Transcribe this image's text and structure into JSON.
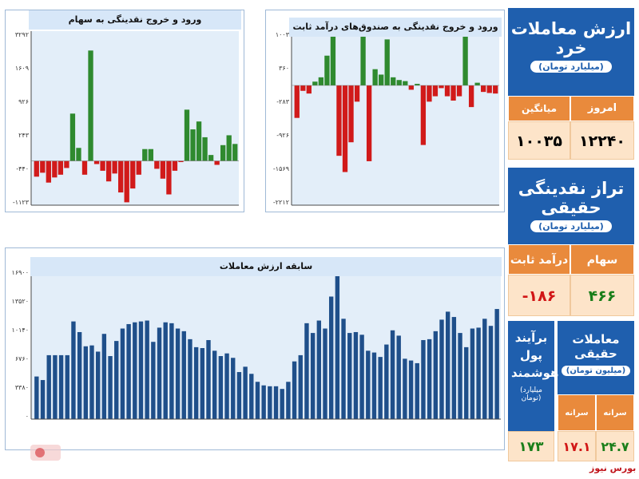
{
  "colors": {
    "positive": "#2f8a2f",
    "negative": "#d11a1a",
    "bars": "#1f4f8a",
    "header": "#d7e7f8",
    "blue_panel": "#1f5fae",
    "orange": "#e98a3c"
  },
  "retail_value": {
    "title": "ارزش معاملات خرد",
    "subtitle": "(میلیارد تومان)",
    "today_label": "امروز",
    "today_value": "۱۲۲۴۰",
    "weekly_avg_label": "میانگین هفتگی",
    "weekly_avg_value": "۱۰۰۳۵"
  },
  "real_liquidity": {
    "title": "تراز نقدینگی حقیقی",
    "subtitle": "(میلیارد تومان)",
    "stock_label": "سهام",
    "stock_value": "۴۶۶",
    "fixed_label": "درآمد ثابت",
    "fixed_value": "-۱۸۶"
  },
  "real_trades": {
    "title": "معاملات حقیقی",
    "subtitle": "(میلیون تومان)",
    "buy_per_capita_label": "سرانه خرید",
    "buy_per_capita_value": "۲۴.۷",
    "sell_per_capita_label": "سرانه فروش",
    "sell_per_capita_value": "۱۷.۱"
  },
  "smart_money": {
    "title": "برآیند پول هوشمند",
    "subtitle": "(میلیارد تومان)",
    "value": "۱۷۳"
  },
  "source_label": "بورس نیوز",
  "chart_data": [
    {
      "type": "bar",
      "title": "ورود و خروج نقدینگی به سهام",
      "ytick_labels": [
        "۳۲۹۲",
        "۱۶۰۹",
        "۹۲۶",
        "۲۴۳",
        "-۴۴۰",
        "-۱۱۲۳"
      ],
      "ylim": [
        -1123,
        3292
      ],
      "values": [
        -400,
        -300,
        -550,
        -420,
        -350,
        -180,
        1200,
        330,
        -350,
        2800,
        -80,
        -250,
        -520,
        -320,
        -800,
        -1050,
        -700,
        -350,
        300,
        300,
        -200,
        -450,
        -850,
        -250,
        -30,
        1300,
        800,
        1000,
        600,
        150,
        -100,
        400,
        650,
        430
      ],
      "grid": false
    },
    {
      "type": "bar",
      "title": "ورود و خروج نقدینگی به صندوق‌های درآمد ثابت",
      "ytick_labels": [
        "۱۰۰۳",
        "۳۶۰",
        "-۲۸۳",
        "-۹۲۶",
        "-۱۵۶۹",
        "-۲۲۱۲"
      ],
      "ylim": [
        -2212,
        1003
      ],
      "values": [
        -600,
        -100,
        -150,
        70,
        150,
        550,
        1000,
        -1300,
        -1600,
        -1050,
        -300,
        1000,
        -1400,
        300,
        200,
        850,
        150,
        100,
        80,
        -80,
        30,
        -1100,
        -300,
        -200,
        -50,
        -200,
        -280,
        -200,
        1000,
        -400,
        50,
        -120,
        -140,
        -150
      ],
      "grid": false
    },
    {
      "type": "bar",
      "title": "سابقه ارزش معاملات",
      "ytick_labels": [
        "۱۶۹۰۰",
        "۱۳۵۲۰",
        "۱۰۱۴۰",
        "۶۷۶۰",
        "۳۳۸۰",
        "۰"
      ],
      "ylim": [
        0,
        16900
      ],
      "values": [
        4800,
        4400,
        7200,
        7200,
        7200,
        7200,
        11000,
        9800,
        8200,
        8300,
        7600,
        9600,
        7100,
        8800,
        10200,
        10700,
        10900,
        11000,
        11100,
        8700,
        10300,
        10900,
        10800,
        10200,
        9900,
        9000,
        8100,
        8000,
        8900,
        7700,
        7100,
        7400,
        6900,
        5300,
        5900,
        5100,
        4200,
        3800,
        3700,
        3700,
        3400,
        4200,
        6500,
        7200,
        10800,
        9700,
        11100,
        10200,
        13800,
        16900,
        11300,
        9700,
        9800,
        9500,
        7700,
        7500,
        7000,
        8400,
        10000,
        9400,
        6800,
        6600,
        6300,
        8900,
        9000,
        9900,
        11200,
        12100,
        11500,
        9700,
        8100,
        10200,
        10300,
        11300,
        10500,
        12400
      ],
      "grid": false
    }
  ]
}
